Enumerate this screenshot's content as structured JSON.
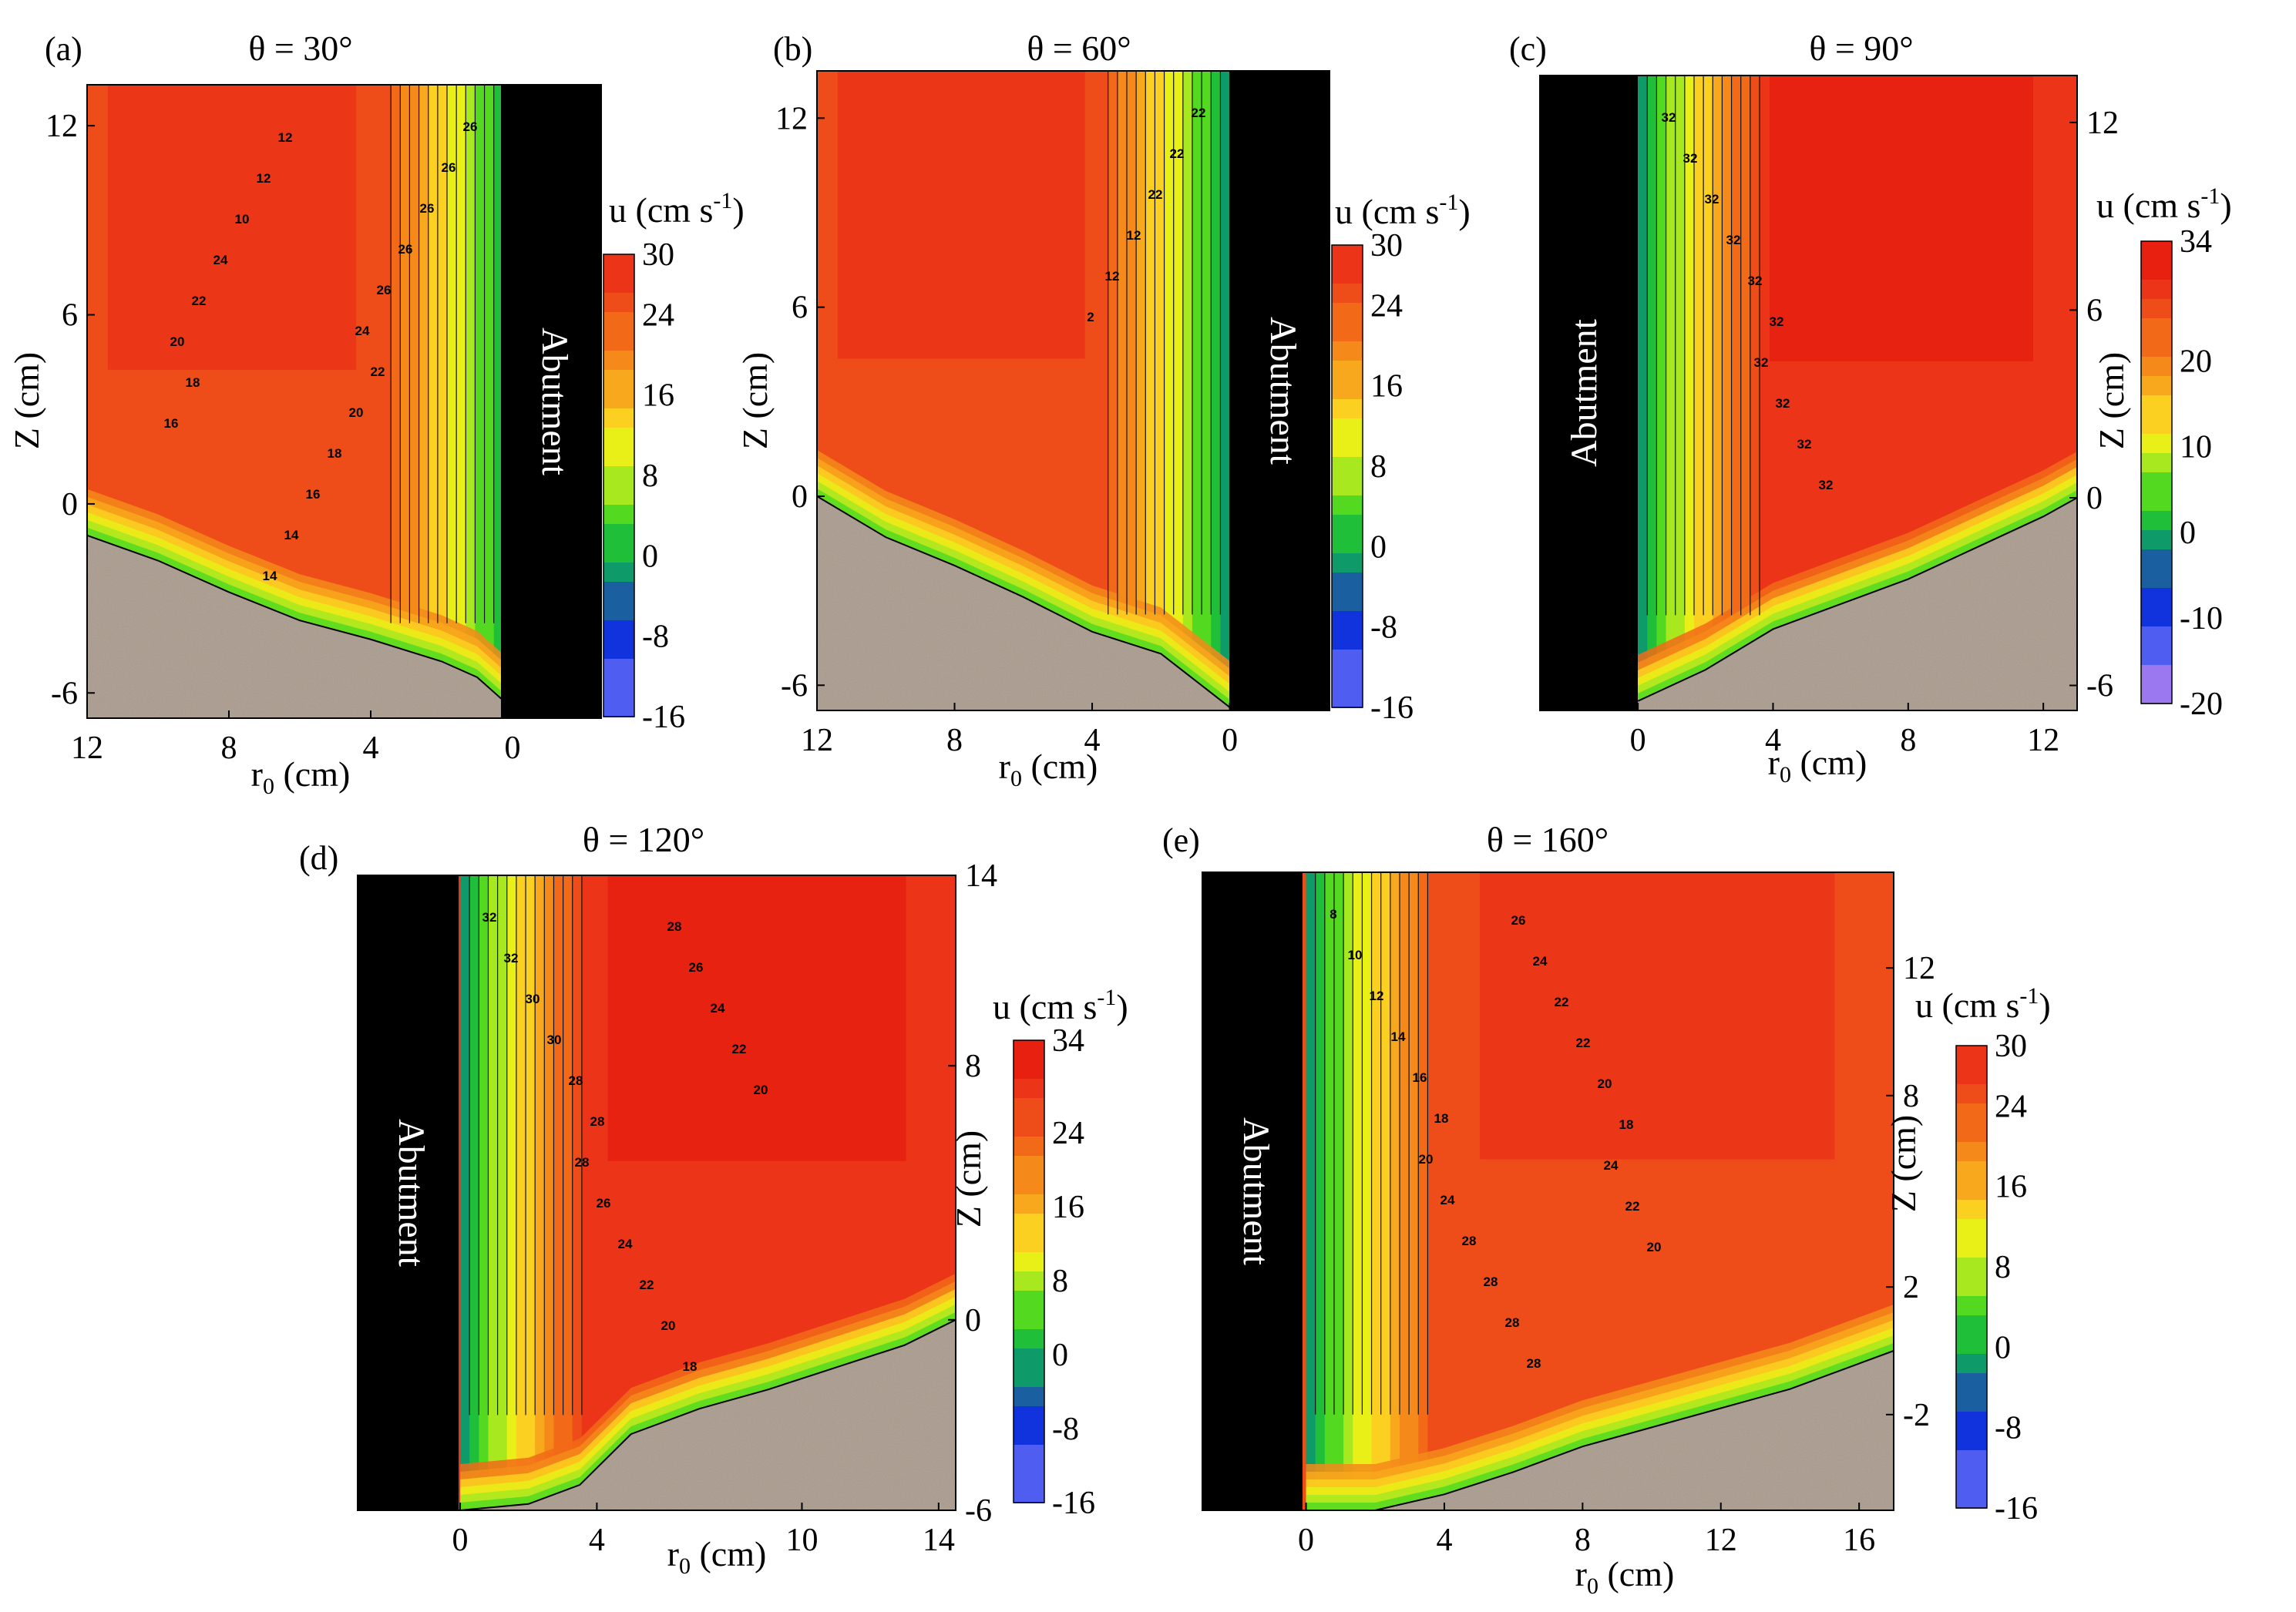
{
  "figure": {
    "abutment_label": "Abutment",
    "colorbar_title_base": "u (cm s",
    "colorbar_title_sup": "-1",
    "colorbar_title_end": ")"
  },
  "chart_data": [
    {
      "type": "heatmap",
      "panel": "(a)",
      "title": "θ = 30°",
      "xlabel_base": "r",
      "xlabel_sub": "0",
      "xlabel_end": " (cm)",
      "ylabel": "Z (cm)",
      "x_reversed": true,
      "xlim": [
        12,
        -2.5
      ],
      "ylim": [
        -6.8,
        13.3
      ],
      "xticks": [
        "12",
        "8",
        "4",
        "0"
      ],
      "xtick_values": [
        12,
        8,
        4,
        0
      ],
      "yticks": [
        "-6",
        "0",
        "6",
        "12"
      ],
      "ytick_values": [
        -6,
        0,
        6,
        12
      ],
      "y_axis_side": "left",
      "abutment_side": "right",
      "abutment_x": [
        0,
        -2.5
      ],
      "bed_profile": [
        [
          12,
          -1
        ],
        [
          10,
          -1.8
        ],
        [
          8,
          -2.8
        ],
        [
          6,
          -3.7
        ],
        [
          4,
          -4.3
        ],
        [
          2,
          -5
        ],
        [
          1,
          -5.5
        ],
        [
          0,
          -6.5
        ]
      ],
      "colorbar_ticks": [
        "30",
        "24",
        "16",
        "8",
        "0",
        "-8",
        "-16"
      ],
      "colorbar_range": [
        -16,
        30
      ],
      "contour_labels": [
        "26",
        "26",
        "26",
        "26",
        "26",
        "24",
        "22",
        "20",
        "18",
        "16",
        "14",
        "14",
        "12",
        "12",
        "10",
        "24",
        "22",
        "20",
        "18",
        "16"
      ]
    },
    {
      "type": "heatmap",
      "panel": "(b)",
      "title": "θ = 60°",
      "xlabel_base": "r",
      "xlabel_sub": "0",
      "xlabel_end": " (cm)",
      "ylabel": "Z (cm)",
      "x_reversed": true,
      "xlim": [
        12,
        -2.9
      ],
      "ylim": [
        -6.8,
        13.5
      ],
      "xticks": [
        "12",
        "8",
        "4",
        "0"
      ],
      "xtick_values": [
        12,
        8,
        4,
        0
      ],
      "yticks": [
        "-6",
        "0",
        "6",
        "12"
      ],
      "ytick_values": [
        -6,
        0,
        6,
        12
      ],
      "y_axis_side": "left",
      "abutment_side": "right",
      "abutment_x": [
        0,
        -2.9
      ],
      "bed_profile": [
        [
          12,
          0
        ],
        [
          10,
          -1.3
        ],
        [
          8,
          -2.2
        ],
        [
          6,
          -3.2
        ],
        [
          4,
          -4.3
        ],
        [
          2,
          -5
        ],
        [
          0,
          -6.7
        ]
      ],
      "colorbar_ticks": [
        "30",
        "24",
        "16",
        "8",
        "0",
        "-8",
        "-16"
      ],
      "colorbar_range": [
        -16,
        30
      ],
      "contour_labels": [
        "22",
        "22",
        "22",
        "12",
        "12",
        "2"
      ]
    },
    {
      "type": "heatmap",
      "panel": "(c)",
      "title": "θ = 90°",
      "xlabel_base": "r",
      "xlabel_sub": "0",
      "xlabel_end": " (cm)",
      "ylabel": "Z (cm)",
      "x_reversed": false,
      "xlim": [
        -2.9,
        13
      ],
      "ylim": [
        -6.8,
        13.5
      ],
      "xticks": [
        "0",
        "4",
        "8",
        "12"
      ],
      "xtick_values": [
        0,
        4,
        8,
        12
      ],
      "yticks": [
        "-6",
        "0",
        "6",
        "12"
      ],
      "ytick_values": [
        -6,
        0,
        6,
        12
      ],
      "y_axis_side": "right",
      "abutment_side": "left",
      "abutment_x": [
        -2.9,
        0
      ],
      "bed_profile": [
        [
          0,
          -6.5
        ],
        [
          2,
          -5.5
        ],
        [
          4,
          -4.2
        ],
        [
          6,
          -3.4
        ],
        [
          8,
          -2.6
        ],
        [
          10,
          -1.6
        ],
        [
          12,
          -0.6
        ],
        [
          13,
          0
        ]
      ],
      "colorbar_ticks": [
        "34",
        "20",
        "10",
        "0",
        "-10",
        "-20"
      ],
      "colorbar_range": [
        -20,
        34
      ],
      "contour_labels": [
        "32",
        "32",
        "32",
        "32",
        "32",
        "32",
        "32",
        "32",
        "32",
        "32"
      ]
    },
    {
      "type": "heatmap",
      "panel": "(d)",
      "title": "θ = 120°",
      "xlabel_base": "r",
      "xlabel_sub": "0",
      "xlabel_end": " (cm)",
      "ylabel": "Z (cm)",
      "x_reversed": false,
      "xlim": [
        -3,
        14.5
      ],
      "ylim": [
        -6,
        14
      ],
      "xticks": [
        "0",
        "4",
        "10",
        "14"
      ],
      "xtick_values": [
        0,
        4,
        10,
        14
      ],
      "yticks": [
        "-6",
        "0",
        "8",
        "14"
      ],
      "ytick_values": [
        -6,
        0,
        8,
        14
      ],
      "y_axis_side": "right",
      "abutment_side": "left",
      "abutment_x": [
        -3,
        0
      ],
      "bed_profile": [
        [
          0,
          -6
        ],
        [
          2,
          -5.8
        ],
        [
          3.5,
          -5.2
        ],
        [
          5,
          -3.6
        ],
        [
          7,
          -2.8
        ],
        [
          9,
          -2.2
        ],
        [
          11,
          -1.5
        ],
        [
          13,
          -0.8
        ],
        [
          14.5,
          0
        ]
      ],
      "colorbar_ticks": [
        "34",
        "24",
        "16",
        "8",
        "0",
        "-8",
        "-16"
      ],
      "colorbar_range": [
        -16,
        34
      ],
      "contour_labels": [
        "32",
        "32",
        "30",
        "30",
        "28",
        "28",
        "28",
        "26",
        "24",
        "22",
        "20",
        "18",
        "28",
        "26",
        "24",
        "22",
        "20"
      ]
    },
    {
      "type": "heatmap",
      "panel": "(e)",
      "title": "θ = 160°",
      "xlabel_base": "r",
      "xlabel_sub": "0",
      "xlabel_end": " (cm)",
      "ylabel": "Z (cm)",
      "x_reversed": false,
      "xlim": [
        -3,
        17
      ],
      "ylim": [
        -5,
        15
      ],
      "xticks": [
        "0",
        "4",
        "8",
        "12",
        "16"
      ],
      "xtick_values": [
        0,
        4,
        8,
        12,
        16
      ],
      "yticks": [
        "-2",
        "2",
        "8",
        "12"
      ],
      "ytick_values": [
        -2,
        2,
        8,
        12
      ],
      "y_axis_side": "right",
      "abutment_side": "left",
      "abutment_x": [
        -3,
        0
      ],
      "bed_profile": [
        [
          0,
          -5
        ],
        [
          2,
          -5
        ],
        [
          4,
          -4.5
        ],
        [
          6,
          -3.8
        ],
        [
          8,
          -3
        ],
        [
          10,
          -2.4
        ],
        [
          12,
          -1.8
        ],
        [
          14,
          -1.2
        ],
        [
          16,
          -0.4
        ],
        [
          17,
          0
        ]
      ],
      "colorbar_ticks": [
        "30",
        "24",
        "16",
        "8",
        "0",
        "-8",
        "-16"
      ],
      "colorbar_range": [
        -16,
        30
      ],
      "contour_labels": [
        "8",
        "10",
        "12",
        "14",
        "16",
        "18",
        "20",
        "24",
        "28",
        "28",
        "28",
        "28",
        "26",
        "24",
        "22",
        "22",
        "20",
        "18",
        "24",
        "22",
        "20"
      ]
    }
  ]
}
